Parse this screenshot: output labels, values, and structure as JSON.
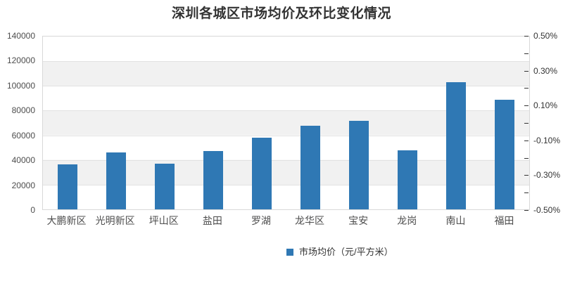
{
  "title": "深圳各城区市场均价及环比变化情况",
  "legend": {
    "items": [
      {
        "label": "市场均价（元/平方米）",
        "color": "#2f78b4",
        "marker": "square-icon"
      }
    ]
  },
  "colors": {
    "bar": "#2f78b4",
    "grid_line": "#e2e2e2",
    "band": "#f1f1f1",
    "frame": "#d8d8d8",
    "axis_label": "#4d4d4d",
    "title_text": "#333333"
  },
  "chart_data": {
    "type": "bar",
    "title": "深圳各城区市场均价及环比变化情况",
    "categories": [
      "大鹏新区",
      "光明新区",
      "坪山区",
      "盐田",
      "罗湖",
      "龙华区",
      "宝安",
      "龙岗",
      "南山",
      "福田"
    ],
    "series": [
      {
        "name": "市场均价（元/平方米）",
        "yaxis": "left",
        "values": [
          36500,
          46200,
          37100,
          47100,
          57800,
          67600,
          71700,
          47900,
          103300,
          88600
        ]
      }
    ],
    "y_left": {
      "min": 0,
      "max": 140000,
      "tick_step": 20000,
      "tick_labels": [
        "0",
        "20000",
        "40000",
        "60000",
        "80000",
        "100000",
        "120000",
        "140000"
      ]
    },
    "y_right": {
      "min": -0.5,
      "max": 0.5,
      "unit": "%",
      "tick_labels": [
        "0.50%",
        "0.30%",
        "0.10%",
        "-0.10%",
        "-0.30%",
        "-0.50%"
      ],
      "minor_tick_interval": 0.1
    },
    "grid": true,
    "background_bands": true,
    "legend_position": "bottom"
  }
}
